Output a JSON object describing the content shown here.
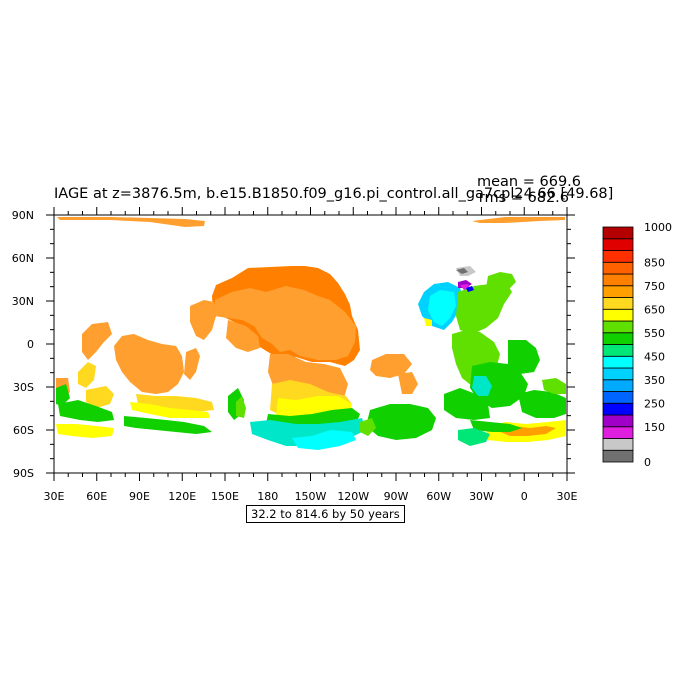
{
  "title": "IAGE at z=3876.5m, b.e15.B1850.f09_g16.pi_control.all_ga7cpl24.66 [49.68]",
  "stats": {
    "mean": "mean = 669.6",
    "rms": "rms = 682.6"
  },
  "info_box": "32.2 to 814.6 by 50 years",
  "axes": {
    "x_ticks": [
      "30E",
      "60E",
      "90E",
      "120E",
      "150E",
      "180",
      "150W",
      "120W",
      "90W",
      "60W",
      "30W",
      "0",
      "30E"
    ],
    "y_ticks": [
      "90N",
      "60N",
      "30N",
      "0",
      "30S",
      "60S",
      "90S"
    ],
    "x_range_lon": [
      30,
      390
    ],
    "y_range_lat": [
      -90,
      90
    ]
  },
  "colorbar": {
    "colors": [
      "#707070",
      "#c8c8c8",
      "#e01ee0",
      "#a000c8",
      "#0000ff",
      "#0064ff",
      "#00aaff",
      "#00d2ff",
      "#00ffff",
      "#00e677",
      "#10d000",
      "#60e000",
      "#ffff00",
      "#ffd820",
      "#ffa000",
      "#ff8000",
      "#ff6000",
      "#ff3000",
      "#e00000",
      "#b40000"
    ],
    "labels": [
      "0",
      "150",
      "250",
      "350",
      "450",
      "550",
      "650",
      "750",
      "850",
      "1000"
    ]
  },
  "chart_data": {
    "type": "heatmap",
    "variable": "IAGE",
    "units": "years",
    "contour_range": [
      32.2,
      814.6
    ],
    "contour_interval": 50,
    "regions": [
      {
        "region": "North Pacific (deep)",
        "approx_value": 775
      },
      {
        "region": "Equatorial / South Pacific",
        "approx_value": 725
      },
      {
        "region": "Indian Ocean",
        "approx_value": 725
      },
      {
        "region": "Southern Ocean Indian sector",
        "approx_value": 650
      },
      {
        "region": "South Pacific (south of 50S)",
        "approx_value": 600
      },
      {
        "region": "North Atlantic",
        "approx_value": 350
      },
      {
        "region": "Equatorial Atlantic",
        "approx_value": 525
      },
      {
        "region": "South Atlantic",
        "approx_value": 525
      },
      {
        "region": "Atlantic Southern Ocean",
        "approx_value": 650
      },
      {
        "region": "Arctic shelf",
        "approx_value": 725
      }
    ]
  }
}
